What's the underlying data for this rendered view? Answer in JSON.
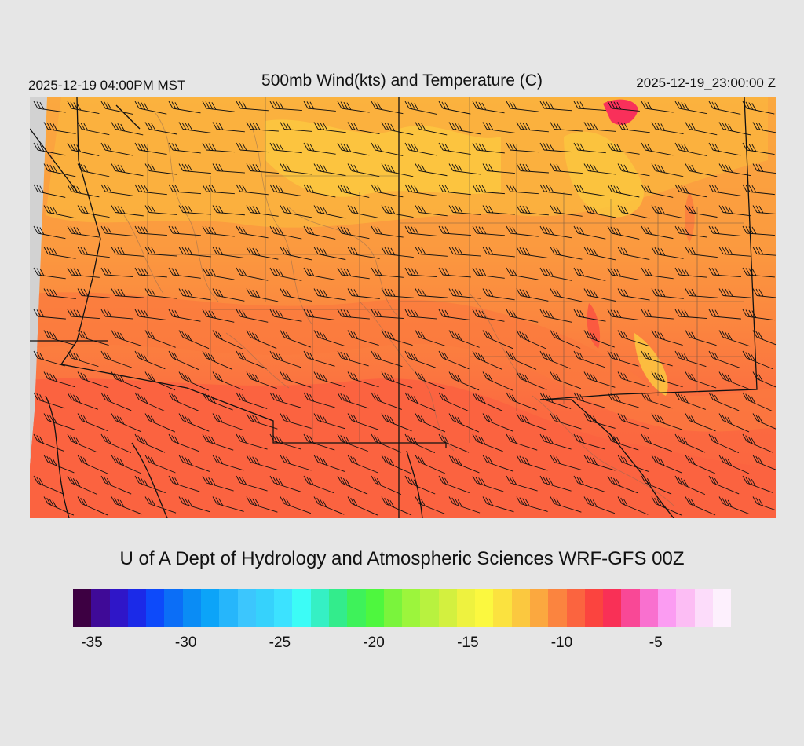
{
  "header": {
    "local_time": "2025-12-19 04:00PM MST",
    "title": "500mb Wind(kts) and Temperature (C)",
    "valid_time": "2025-12-19_23:00:00 Z"
  },
  "credit": "U of A Dept of Hydrology and Atmospheric Sciences WRF-GFS 00Z",
  "colorbar": {
    "colors": [
      "#3d0042",
      "#3f0a97",
      "#2f16c8",
      "#1b2ae8",
      "#0d4afa",
      "#0b6ef7",
      "#0a8cf5",
      "#0ca4f8",
      "#26b6fb",
      "#3cc6fd",
      "#36d2fc",
      "#3ce2ff",
      "#3cfcf6",
      "#35f0c4",
      "#33ec8c",
      "#3ef25a",
      "#4ef73e",
      "#7af43c",
      "#9cf53c",
      "#b8f23f",
      "#d3f03f",
      "#eef23f",
      "#fbf83f",
      "#fbe23f",
      "#fbc83f",
      "#fba83f",
      "#fb843f",
      "#fb643f",
      "#fb443f",
      "#f93056",
      "#f94896",
      "#f970cf",
      "#fb9cf2",
      "#fcbdf4",
      "#fcdcfa",
      "#fdf0fd"
    ],
    "labels": [
      "-35",
      "-30",
      "-25",
      "-20",
      "-15",
      "-10",
      "-5"
    ],
    "label_values": [
      -35,
      -30,
      -25,
      -20,
      -15,
      -10,
      -5
    ],
    "min": -36,
    "max": -1
  },
  "map": {
    "fill_colors": {
      "warm_south": "#fb6340",
      "mid": "#fb843f",
      "north": "#fba83f",
      "cold_pockets": "#fbc83f",
      "hot_spots": "#f9305a"
    },
    "wind_barb_color": "#111111"
  }
}
